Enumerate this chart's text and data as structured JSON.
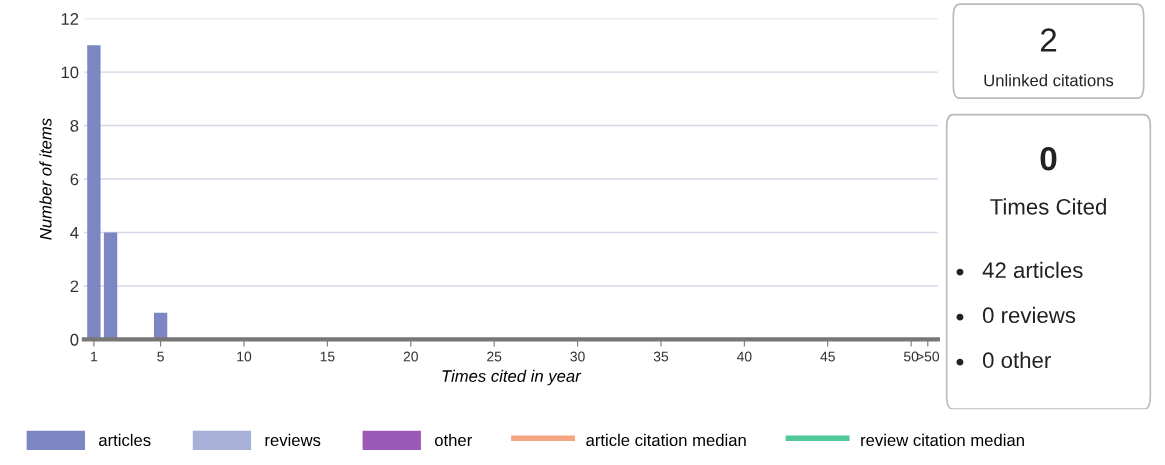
{
  "chart_data": [
    {
      "type": "bar",
      "xlabel": "Times cited in year",
      "ylabel": "Number of items",
      "categories": [
        "1",
        null,
        null,
        null,
        "5",
        null,
        null,
        null,
        null,
        "10",
        null,
        null,
        null,
        null,
        "15",
        null,
        null,
        null,
        null,
        "20",
        null,
        null,
        null,
        null,
        "25",
        null,
        null,
        null,
        null,
        "30",
        null,
        null,
        null,
        null,
        "35",
        null,
        null,
        null,
        null,
        "40",
        null,
        null,
        null,
        null,
        "45",
        null,
        null,
        null,
        null,
        "50",
        ">50"
      ],
      "series": [
        {
          "name": "articles",
          "color": "#7b86c2",
          "values": [
            11,
            4,
            0,
            0,
            1,
            0,
            0,
            0,
            0,
            0,
            0,
            0,
            0,
            0,
            0,
            0,
            0,
            0,
            0,
            0,
            0,
            0,
            0,
            0,
            0,
            0,
            0,
            0,
            0,
            0,
            0,
            0,
            0,
            0,
            0,
            0,
            0,
            0,
            0,
            0,
            0,
            0,
            0,
            0,
            0,
            0,
            0,
            0,
            0,
            0,
            0
          ]
        },
        {
          "name": "reviews",
          "color": "#a9b0d8",
          "values": [
            0,
            0,
            0,
            0,
            0,
            0,
            0,
            0,
            0,
            0,
            0,
            0,
            0,
            0,
            0,
            0,
            0,
            0,
            0,
            0,
            0,
            0,
            0,
            0,
            0,
            0,
            0,
            0,
            0,
            0,
            0,
            0,
            0,
            0,
            0,
            0,
            0,
            0,
            0,
            0,
            0,
            0,
            0,
            0,
            0,
            0,
            0,
            0,
            0,
            0,
            0
          ]
        },
        {
          "name": "other",
          "color": "#9b59b6",
          "values": [
            0,
            0,
            0,
            0,
            0,
            0,
            0,
            0,
            0,
            0,
            0,
            0,
            0,
            0,
            0,
            0,
            0,
            0,
            0,
            0,
            0,
            0,
            0,
            0,
            0,
            0,
            0,
            0,
            0,
            0,
            0,
            0,
            0,
            0,
            0,
            0,
            0,
            0,
            0,
            0,
            0,
            0,
            0,
            0,
            0,
            0,
            0,
            0,
            0,
            0,
            0
          ]
        },
        {
          "name": "article citation median",
          "type": "line",
          "color": "#f4a582",
          "values": [
            null,
            null,
            null,
            null,
            null,
            null,
            null,
            null,
            null,
            null,
            null,
            null,
            null,
            null,
            null,
            null,
            null,
            null,
            null,
            null,
            null,
            null,
            null,
            null,
            null,
            null,
            null,
            null,
            null,
            null,
            null,
            null,
            null,
            null,
            null,
            null,
            null,
            null,
            null,
            null,
            null,
            null,
            null,
            null,
            null,
            null,
            null,
            null,
            null,
            null,
            null
          ]
        },
        {
          "name": "review citation median",
          "type": "line",
          "color": "#4fc99a",
          "values": [
            null,
            null,
            null,
            null,
            null,
            null,
            null,
            null,
            null,
            null,
            null,
            null,
            null,
            null,
            null,
            null,
            null,
            null,
            null,
            null,
            null,
            null,
            null,
            null,
            null,
            null,
            null,
            null,
            null,
            null,
            null,
            null,
            null,
            null,
            null,
            null,
            null,
            null,
            null,
            null,
            null,
            null,
            null,
            null,
            null,
            null,
            null,
            null,
            null,
            null,
            null
          ]
        }
      ],
      "ylim": [
        0,
        12
      ],
      "yticks": [
        0,
        2,
        4,
        6,
        8,
        10,
        12
      ],
      "grid": "y",
      "legend": "bottom",
      "stacked": true
    },
    {
      "type": "other",
      "annotations": [
        "2",
        "Unlinked citations",
        "0",
        "Times Cited",
        "42 articles",
        "0 reviews",
        "0 other"
      ]
    }
  ]
}
